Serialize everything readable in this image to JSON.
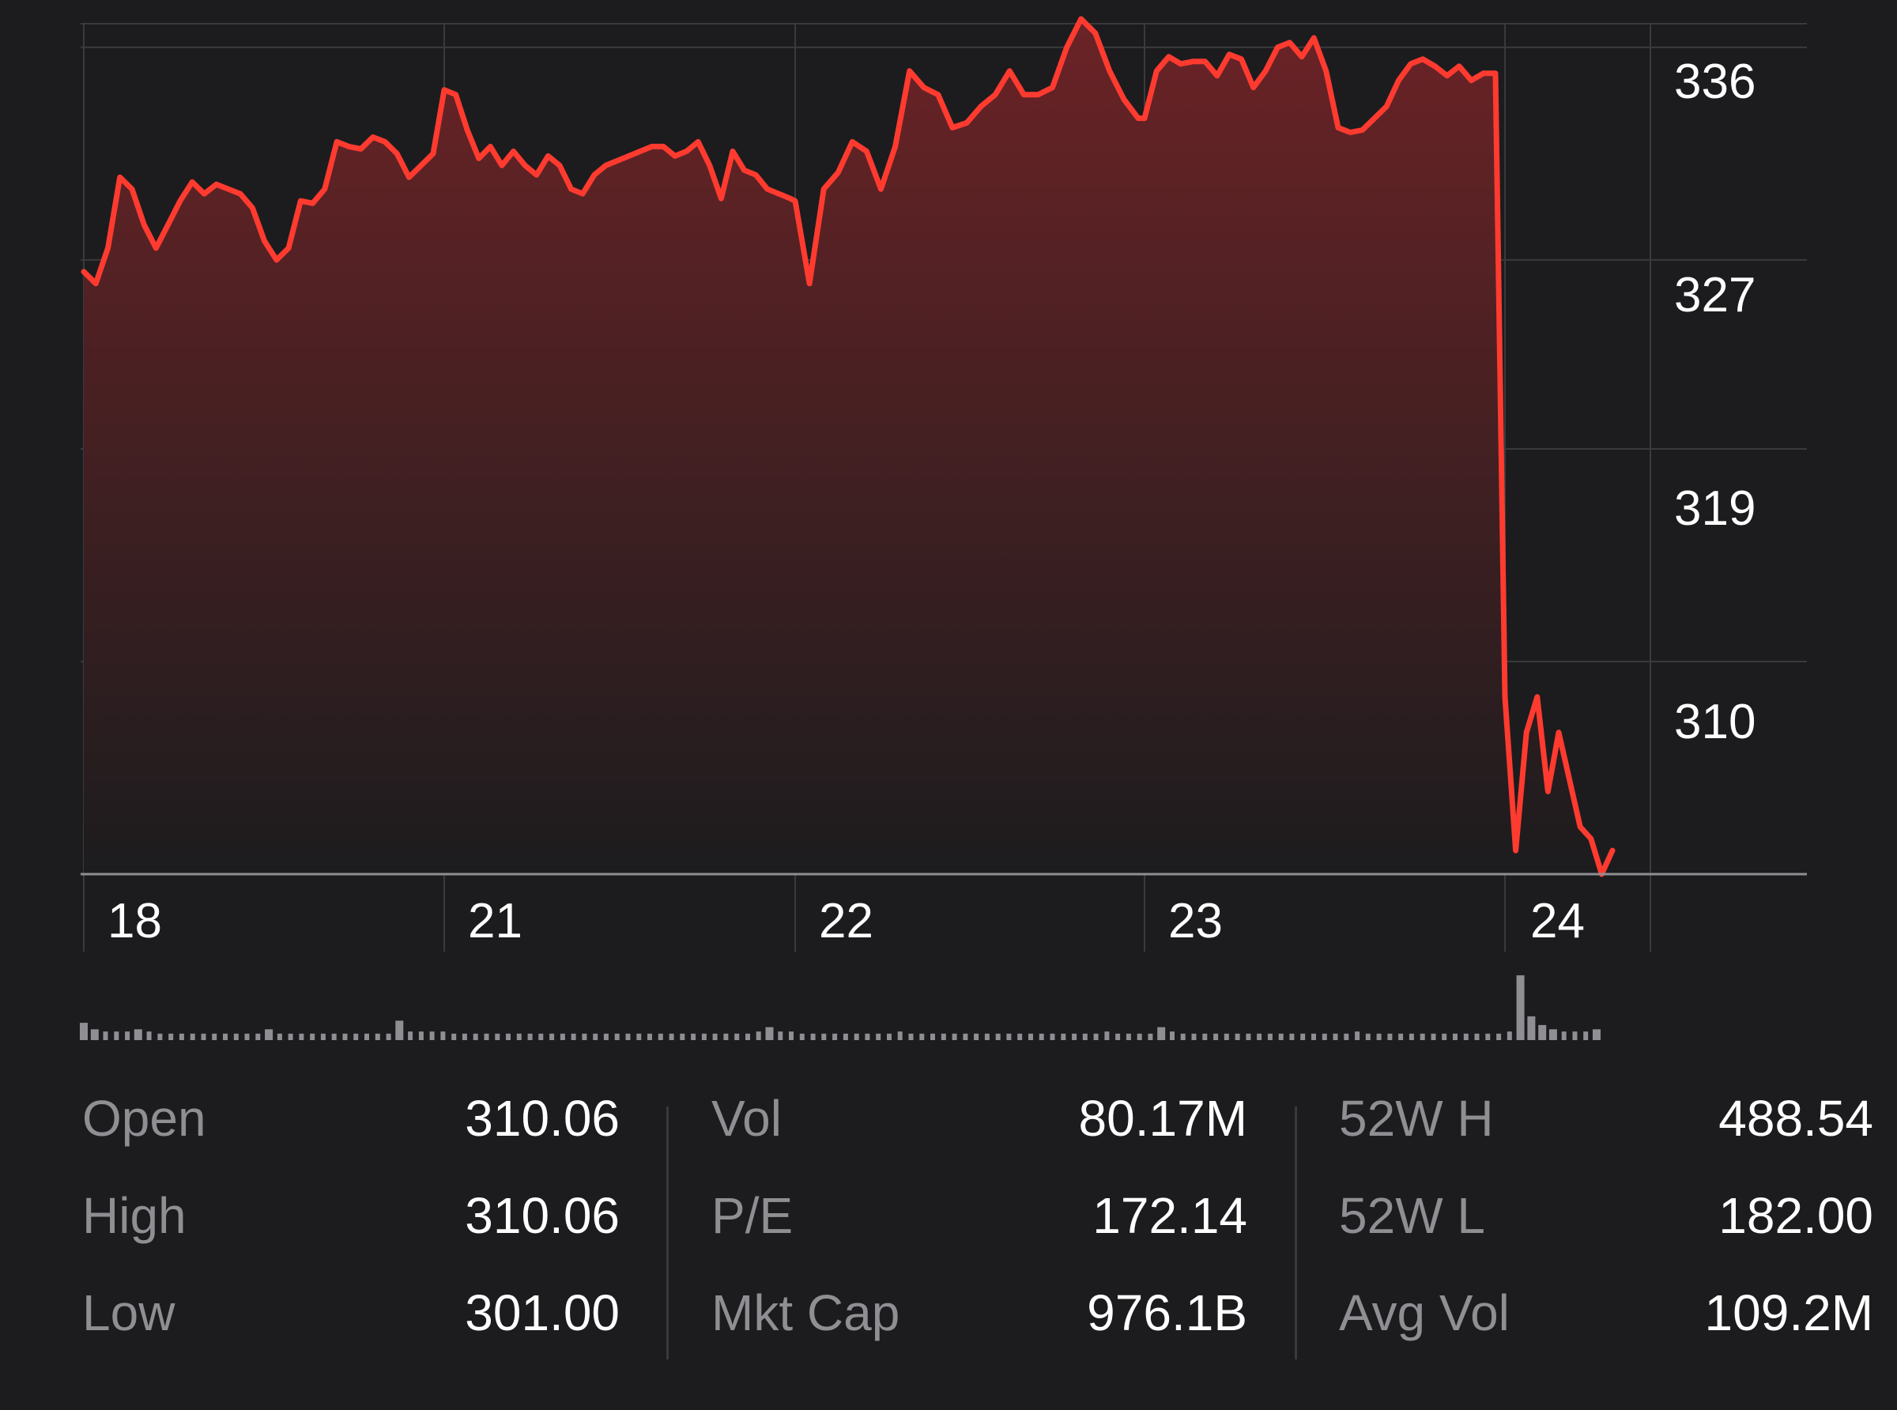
{
  "chart_data": {
    "type": "area",
    "y_ticks": [
      "336",
      "327",
      "319",
      "310"
    ],
    "x_ticks": [
      "18",
      "21",
      "22",
      "23",
      "24"
    ],
    "ylim": [
      301,
      337
    ],
    "grid": true,
    "line_color": "#ff3b30",
    "fill_color_top": "#6b2326",
    "fill_color_bottom": "#1c1c1e",
    "series": [
      {
        "points": [
          {
            "day": "18",
            "values": [
              326.5,
              326.0,
              327.5,
              330.5,
              330.0,
              328.5,
              327.5,
              328.5,
              329.5,
              330.3,
              329.8,
              330.2,
              330.0,
              329.8,
              329.2,
              327.8,
              327.0,
              327.5,
              329.5,
              329.4,
              330.0,
              332.0,
              331.8,
              331.7,
              332.2,
              332.0,
              331.5,
              330.5,
              331.0,
              331.5
            ]
          },
          {
            "day": "21",
            "values": [
              334.2,
              334.0,
              332.5,
              331.3,
              331.8,
              331.0,
              331.6,
              331.0,
              330.6,
              331.4,
              331.0,
              330.0,
              329.8,
              330.6,
              331.0,
              331.2,
              331.4,
              331.6,
              331.8,
              331.8,
              331.4,
              331.6,
              332.0,
              331.0,
              329.6,
              331.6,
              330.8,
              330.6,
              330.0,
              329.8,
              329.6
            ]
          },
          {
            "day": "22",
            "values": [
              329.5,
              326.0,
              330.0,
              330.7,
              332.0,
              331.6,
              330.0,
              331.8,
              335.0,
              334.3,
              334.0,
              332.6,
              332.8,
              333.5,
              334.0,
              335.0,
              334.0,
              334.0,
              334.3,
              336.0,
              337.2,
              336.6,
              335.0,
              333.8,
              333.0
            ]
          },
          {
            "day": "23",
            "values": [
              333.0,
              335.0,
              335.6,
              335.3,
              335.4,
              335.4,
              334.8,
              335.7,
              335.5,
              334.3,
              335.0,
              336.0,
              336.2,
              335.6,
              336.4,
              335.0,
              332.6,
              332.4,
              332.5,
              333.0,
              333.5,
              334.6,
              335.3,
              335.5,
              335.2,
              334.8,
              335.2,
              334.6,
              334.9,
              334.9
            ]
          },
          {
            "day": "24",
            "values": [
              308.5,
              302.0,
              307.0,
              308.5,
              304.5,
              307.0,
              305.0,
              303.0,
              302.5,
              301.0,
              302.0
            ]
          }
        ]
      }
    ],
    "volume": {
      "bar_color": "#8e8e93",
      "values": [
        8,
        5,
        4,
        4,
        4,
        5,
        4,
        3,
        3,
        3,
        3,
        3,
        3,
        3,
        3,
        3,
        3,
        5,
        3,
        3,
        3,
        3,
        3,
        3,
        3,
        3,
        3,
        3,
        3,
        9,
        4,
        4,
        4,
        4,
        3,
        3,
        3,
        3,
        3,
        3,
        3,
        3,
        3,
        3,
        3,
        3,
        3,
        3,
        3,
        3,
        3,
        3,
        3,
        3,
        3,
        3,
        3,
        3,
        3,
        3,
        3,
        3,
        4,
        6,
        4,
        4,
        3,
        3,
        3,
        3,
        3,
        3,
        3,
        3,
        3,
        4,
        3,
        3,
        3,
        3,
        3,
        3,
        3,
        3,
        3,
        3,
        3,
        3,
        3,
        3,
        3,
        3,
        3,
        3,
        4,
        3,
        3,
        3,
        3,
        6,
        4,
        3,
        3,
        3,
        3,
        3,
        3,
        3,
        3,
        3,
        3,
        3,
        3,
        3,
        3,
        3,
        3,
        4,
        3,
        3,
        3,
        3,
        3,
        3,
        3,
        3,
        3,
        3,
        3,
        3,
        3,
        4,
        30,
        11,
        7,
        5,
        4,
        4,
        4,
        5
      ]
    }
  },
  "stats": [
    {
      "label": "Open",
      "value": "310.06"
    },
    {
      "label": "High",
      "value": "310.06"
    },
    {
      "label": "Low",
      "value": "301.00"
    },
    {
      "label": "Vol",
      "value": "80.17M"
    },
    {
      "label": "P/E",
      "value": "172.14"
    },
    {
      "label": "Mkt Cap",
      "value": "976.1B"
    },
    {
      "label": "52W H",
      "value": "488.54"
    },
    {
      "label": "52W L",
      "value": "182.00"
    },
    {
      "label": "Avg Vol",
      "value": "109.2M"
    }
  ]
}
